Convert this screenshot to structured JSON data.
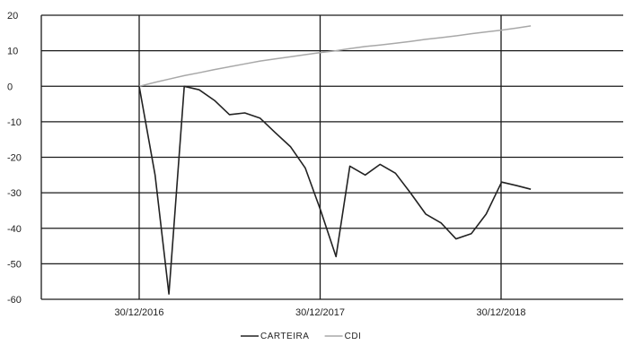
{
  "chart_data": {
    "type": "line",
    "title": "",
    "xlabel": "",
    "ylabel": "",
    "ylim": [
      -60,
      20
    ],
    "yticks": [
      20,
      10,
      0,
      -10,
      -20,
      -30,
      -40,
      -50,
      -60
    ],
    "x_ticks": [
      {
        "date": "2016-12-30",
        "label": "30/12/2016"
      },
      {
        "date": "2017-12-30",
        "label": "30/12/2017"
      },
      {
        "date": "2018-12-30",
        "label": "30/12/2018"
      }
    ],
    "grid": true,
    "legend_placement": "bottom-center",
    "series": [
      {
        "name": "CARTEIRA",
        "color": "#222222",
        "points": [
          {
            "x": "2016-12-30",
            "y": 0
          },
          {
            "x": "2017-01-31",
            "y": -25
          },
          {
            "x": "2017-02-28",
            "y": -58.5
          },
          {
            "x": "2017-03-31",
            "y": 0
          },
          {
            "x": "2017-04-30",
            "y": -1
          },
          {
            "x": "2017-05-31",
            "y": -4
          },
          {
            "x": "2017-06-30",
            "y": -8
          },
          {
            "x": "2017-07-31",
            "y": -7.5
          },
          {
            "x": "2017-08-31",
            "y": -9
          },
          {
            "x": "2017-09-30",
            "y": -13
          },
          {
            "x": "2017-10-31",
            "y": -17
          },
          {
            "x": "2017-11-30",
            "y": -23
          },
          {
            "x": "2017-12-31",
            "y": -35
          },
          {
            "x": "2018-01-31",
            "y": -48
          },
          {
            "x": "2018-02-28",
            "y": -22.5
          },
          {
            "x": "2018-03-31",
            "y": -25
          },
          {
            "x": "2018-04-30",
            "y": -22
          },
          {
            "x": "2018-05-31",
            "y": -24.5
          },
          {
            "x": "2018-06-30",
            "y": -30
          },
          {
            "x": "2018-07-31",
            "y": -36
          },
          {
            "x": "2018-08-31",
            "y": -38.5
          },
          {
            "x": "2018-09-30",
            "y": -43
          },
          {
            "x": "2018-10-31",
            "y": -41.5
          },
          {
            "x": "2018-11-30",
            "y": -36
          },
          {
            "x": "2018-12-31",
            "y": -27
          },
          {
            "x": "2019-01-31",
            "y": -28
          },
          {
            "x": "2019-02-28",
            "y": -29
          }
        ]
      },
      {
        "name": "CDI",
        "color": "#a8a8a8",
        "points": [
          {
            "x": "2016-12-30",
            "y": 0
          },
          {
            "x": "2017-01-31",
            "y": 1.1
          },
          {
            "x": "2017-02-28",
            "y": 2
          },
          {
            "x": "2017-03-31",
            "y": 3
          },
          {
            "x": "2017-04-30",
            "y": 3.8
          },
          {
            "x": "2017-05-31",
            "y": 4.7
          },
          {
            "x": "2017-06-30",
            "y": 5.5
          },
          {
            "x": "2017-07-31",
            "y": 6.3
          },
          {
            "x": "2017-08-31",
            "y": 7.1
          },
          {
            "x": "2017-09-30",
            "y": 7.7
          },
          {
            "x": "2017-10-31",
            "y": 8.3
          },
          {
            "x": "2017-11-30",
            "y": 8.9
          },
          {
            "x": "2017-12-31",
            "y": 9.5
          },
          {
            "x": "2018-01-31",
            "y": 10
          },
          {
            "x": "2018-02-28",
            "y": 10.6
          },
          {
            "x": "2018-03-31",
            "y": 11.2
          },
          {
            "x": "2018-04-30",
            "y": 11.6
          },
          {
            "x": "2018-05-31",
            "y": 12.1
          },
          {
            "x": "2018-06-30",
            "y": 12.6
          },
          {
            "x": "2018-07-31",
            "y": 13.2
          },
          {
            "x": "2018-08-31",
            "y": 13.7
          },
          {
            "x": "2018-09-30",
            "y": 14.2
          },
          {
            "x": "2018-10-31",
            "y": 14.8
          },
          {
            "x": "2018-11-30",
            "y": 15.3
          },
          {
            "x": "2018-12-31",
            "y": 15.8
          },
          {
            "x": "2019-01-31",
            "y": 16.4
          },
          {
            "x": "2019-02-28",
            "y": 17
          }
        ]
      }
    ]
  }
}
